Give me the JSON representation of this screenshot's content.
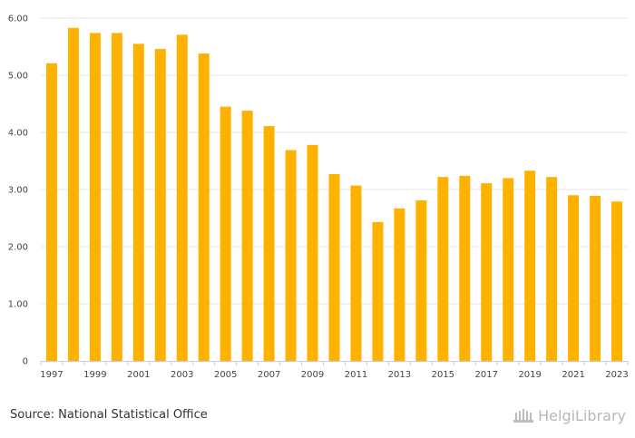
{
  "chart_data": {
    "type": "bar",
    "title": "",
    "xlabel": "",
    "ylabel": "",
    "categories": [
      "1997",
      "1998",
      "1999",
      "2000",
      "2001",
      "2002",
      "2003",
      "2004",
      "2005",
      "2006",
      "2007",
      "2008",
      "2009",
      "2010",
      "2011",
      "2012",
      "2013",
      "2014",
      "2015",
      "2016",
      "2017",
      "2018",
      "2019",
      "2020",
      "2021",
      "2022",
      "2023"
    ],
    "values": [
      5.21,
      5.83,
      5.74,
      5.74,
      5.55,
      5.46,
      5.71,
      5.38,
      4.45,
      4.38,
      4.11,
      3.69,
      3.78,
      3.27,
      3.07,
      2.43,
      2.67,
      2.81,
      3.22,
      3.24,
      3.11,
      3.2,
      3.33,
      3.22,
      2.9,
      2.89,
      2.79
    ],
    "ylim": [
      0,
      6
    ],
    "y_ticks": [
      "0",
      "1.00",
      "2.00",
      "3.00",
      "4.00",
      "5.00",
      "6.00"
    ],
    "x_tick_labels": [
      "1997",
      "1999",
      "2001",
      "2003",
      "2005",
      "2007",
      "2009",
      "2011",
      "2013",
      "2015",
      "2017",
      "2019",
      "2021",
      "2023"
    ],
    "bar_color": "#FFB100",
    "grid": true
  },
  "footer": {
    "source": "Source: National Statistical Office",
    "brand": "HelgiLibrary",
    "brand_icon": "helgi-library-logo-icon"
  },
  "colors": {
    "bar": "#FFB100",
    "grid": "#e6e6e6",
    "axis": "#cccccc",
    "brand": "#b8b8b8"
  }
}
